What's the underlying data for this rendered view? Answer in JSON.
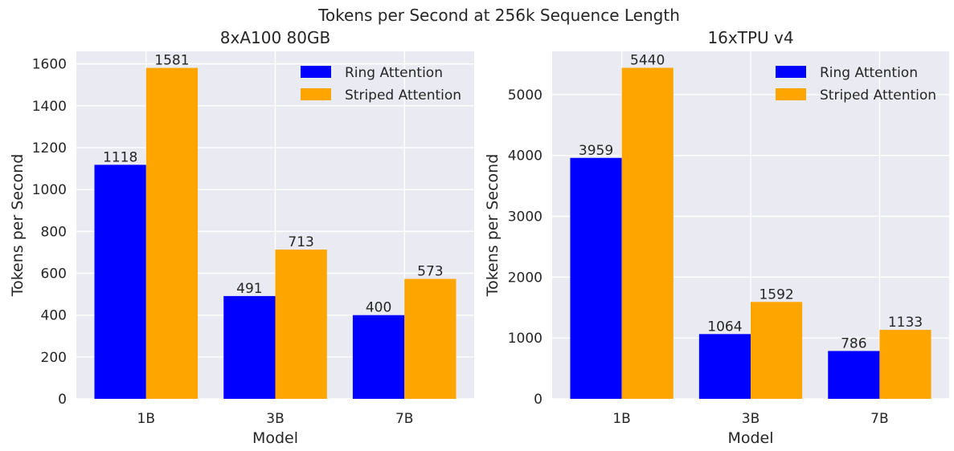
{
  "suptitle": "Tokens per Second at 256k Sequence Length",
  "chart_data": [
    {
      "type": "bar",
      "title": "8xA100 80GB",
      "xlabel": "Model",
      "ylabel": "Tokens per Second",
      "categories": [
        "1B",
        "3B",
        "7B"
      ],
      "series": [
        {
          "name": "Ring Attention",
          "color": "#0000ff",
          "values": [
            1118,
            491,
            400
          ]
        },
        {
          "name": "Striped Attention",
          "color": "#ffa500",
          "values": [
            1581,
            713,
            573
          ]
        }
      ],
      "ylim": [
        0,
        1660
      ],
      "yticks": [
        0,
        200,
        400,
        600,
        800,
        1000,
        1200,
        1400,
        1600
      ],
      "grid": true,
      "legend": "top-right"
    },
    {
      "type": "bar",
      "title": "16xTPU v4",
      "xlabel": "Model",
      "ylabel": "Tokens per Second",
      "categories": [
        "1B",
        "3B",
        "7B"
      ],
      "series": [
        {
          "name": "Ring Attention",
          "color": "#0000ff",
          "values": [
            3959,
            1064,
            786
          ]
        },
        {
          "name": "Striped Attention",
          "color": "#ffa500",
          "values": [
            5440,
            1592,
            1133
          ]
        }
      ],
      "ylim": [
        0,
        5710
      ],
      "yticks": [
        0,
        1000,
        2000,
        3000,
        4000,
        5000
      ],
      "grid": true,
      "legend": "top-right"
    }
  ]
}
